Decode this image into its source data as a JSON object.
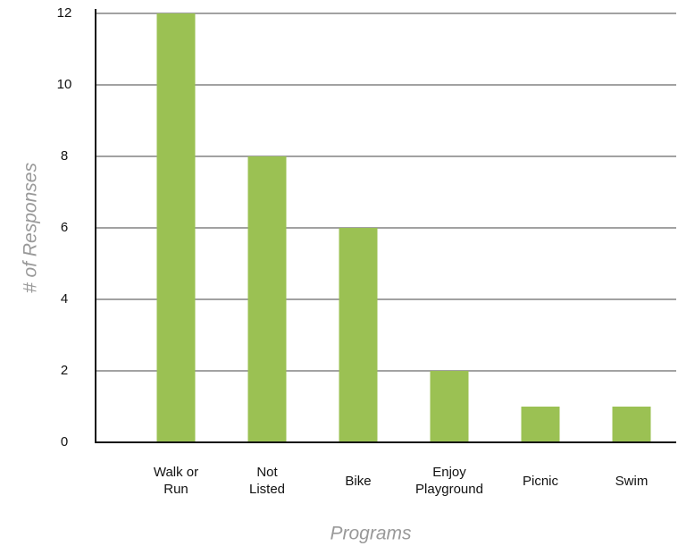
{
  "chart_data": {
    "type": "bar",
    "x_label": "Programs",
    "y_label": "# of Responses",
    "categories": [
      "Walk or\nRun",
      "Not\nListed",
      "Bike",
      "Enjoy\nPlayground",
      "Picnic",
      "Swim"
    ],
    "values": [
      12,
      8,
      6,
      2,
      1,
      1
    ],
    "color": "#9bc153",
    "ylim": [
      0,
      12
    ],
    "yticks": [
      0,
      2,
      4,
      6,
      8,
      10,
      12
    ],
    "grid": true
  }
}
